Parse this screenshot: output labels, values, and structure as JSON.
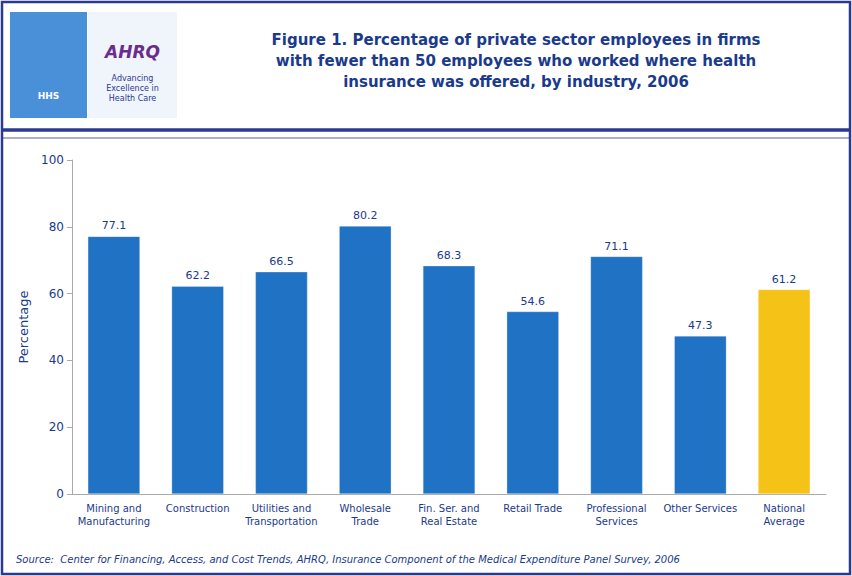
{
  "chart_data": {
    "type": "bar",
    "title": "Figure 1. Percentage of private sector employees in firms\nwith fewer than 50 employees who worked where health\ninsurance was offered, by industry, 2006",
    "categories": [
      "Mining and\nManufacturing",
      "Construction",
      "Utilities and\nTransportation",
      "Wholesale\nTrade",
      "Fin. Ser. and\nReal Estate",
      "Retail Trade",
      "Professional\nServices",
      "Other Services",
      "National\nAverage"
    ],
    "values": [
      77.1,
      62.2,
      66.5,
      80.2,
      68.3,
      54.6,
      71.1,
      47.3,
      61.2
    ],
    "colors": [
      "#1F72C4",
      "#1F72C4",
      "#1F72C4",
      "#1F72C4",
      "#1F72C4",
      "#1F72C4",
      "#1F72C4",
      "#1F72C4",
      "#F5C218"
    ],
    "ylabel": "Percentage",
    "ylim": [
      0,
      100
    ],
    "yticks": [
      0,
      20,
      40,
      60,
      80,
      100
    ],
    "grid": false,
    "data_labels": true,
    "annotations": [
      "Source:  Center for Financing, Access, and Cost Trends, AHRQ, Insurance Component of the Medical Expenditure Panel Survey, 2006",
      "HHS",
      "AHRQ",
      "Advancing\nExcellence in\nHealth Care"
    ]
  }
}
